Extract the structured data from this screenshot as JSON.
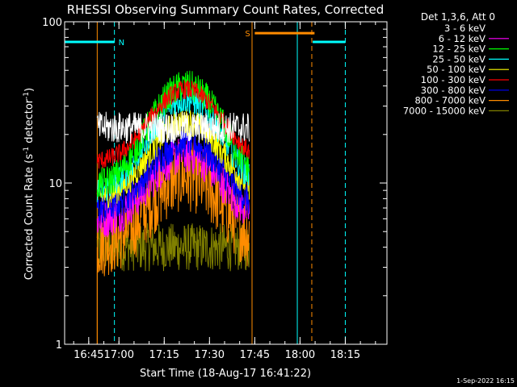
{
  "chart_data": {
    "type": "line",
    "title": "RHESSI Observing Summary Count Rates, Corrected",
    "xlabel": "Start Time (18-Aug-17 16:41:22)",
    "ylabel": "Corrected Count Rate (s",
    "ylabel_sup1": "-1",
    "ylabel_mid": " detector",
    "ylabel_sup2": "-1",
    "ylabel_end": ")",
    "y_scale": "log",
    "ylim": [
      1,
      100
    ],
    "xlim": [
      16.7,
      18.48
    ],
    "x_ticks": [
      {
        "value": 16.833,
        "label": "16:45"
      },
      {
        "value": 17.0,
        "label": "17:00"
      },
      {
        "value": 17.25,
        "label": "17:15"
      },
      {
        "value": 17.5,
        "label": "17:30"
      },
      {
        "value": 17.75,
        "label": "17:45"
      },
      {
        "value": 18.0,
        "label": "18:00"
      },
      {
        "value": 18.25,
        "label": "18:15"
      }
    ],
    "y_ticks": [
      {
        "value": 1,
        "label": "1"
      },
      {
        "value": 10,
        "label": "10"
      },
      {
        "value": 100,
        "label": "100"
      }
    ],
    "legend_title": "Det 1,3,6, Att 0",
    "data_start": 16.88,
    "data_end": 17.72,
    "series": [
      {
        "name": "3 - 6 keV",
        "color": "#000000",
        "base": 22,
        "peak": 22,
        "noise": 0.1
      },
      {
        "name": "6 - 12 keV",
        "color": "#ff00ff",
        "base": 5.8,
        "peak": 15,
        "noise": 0.12
      },
      {
        "name": "12 - 25 keV",
        "color": "#00ff00",
        "base": 9.5,
        "peak": 40,
        "noise": 0.1
      },
      {
        "name": "25 - 50 keV",
        "color": "#00ffff",
        "base": 8.8,
        "peak": 33,
        "noise": 0.09
      },
      {
        "name": "50 - 100 keV",
        "color": "#ffff00",
        "base": 8.2,
        "peak": 24,
        "noise": 0.09
      },
      {
        "name": "100 - 300 keV",
        "color": "#ff0000",
        "base": 13.5,
        "peak": 38,
        "noise": 0.06
      },
      {
        "name": "300 - 800 keV",
        "color": "#0000ff",
        "base": 6.8,
        "peak": 18,
        "noise": 0.1
      },
      {
        "name": "800 - 7000 keV",
        "color": "#ff8c00",
        "base": 4.2,
        "peak": 11,
        "noise": 0.22
      },
      {
        "name": "7000 - 15000 keV",
        "color": "#808000",
        "base": 4.0,
        "peak": 4.0,
        "noise": 0.15
      }
    ],
    "annotations": {
      "night": [
        {
          "start": 16.7,
          "end": 16.975,
          "label": "N",
          "y": 75
        }
      ],
      "night2": [
        {
          "start": 18.07,
          "end": 18.25,
          "y": 75
        }
      ],
      "saa": [
        {
          "start": 17.75,
          "end": 18.08,
          "label": "S",
          "y": 85
        }
      ],
      "cyan_solid": [
        16.7,
        17.985
      ],
      "cyan_dashed": [
        16.975,
        18.25
      ],
      "orange_solid": [
        16.88,
        17.735
      ],
      "orange_dashed": [
        18.065
      ]
    },
    "axis_color": "#ffffff"
  },
  "footer": {
    "timestamp": "1-Sep-2022 16:15"
  }
}
